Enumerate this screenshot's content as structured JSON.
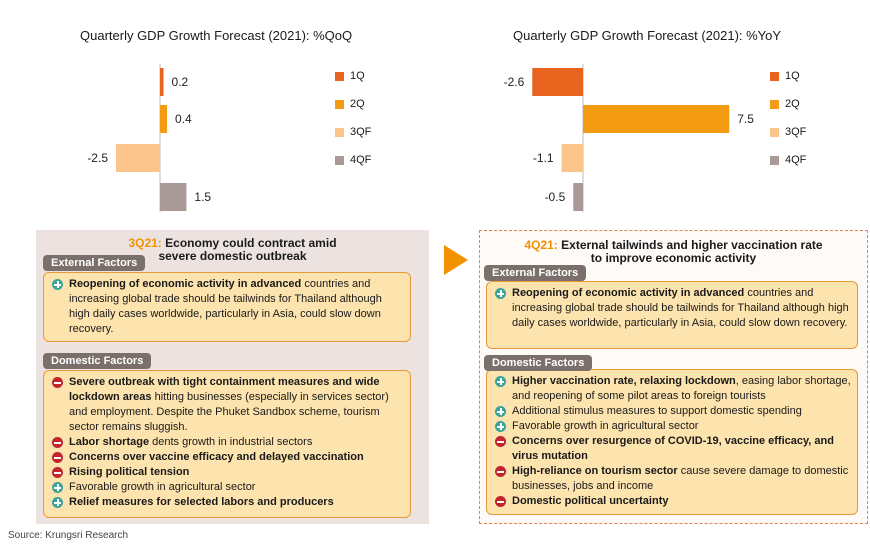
{
  "chart_data": [
    {
      "type": "bar",
      "orientation": "horizontal",
      "title": "Quarterly GDP Growth Forecast (2021): %QoQ",
      "categories": [
        "1Q",
        "2Q",
        "3QF",
        "4QF"
      ],
      "values": [
        0.2,
        0.4,
        -2.5,
        1.5
      ],
      "value_labels": [
        "0.2",
        "0.4",
        "-2.5",
        "1.5"
      ],
      "colors": [
        "#e8641e",
        "#f39c12",
        "#fac58a",
        "#a99a97"
      ],
      "legend_position": "right",
      "grid": false
    },
    {
      "type": "bar",
      "orientation": "horizontal",
      "title": "Quarterly GDP Growth Forecast (2021): %YoY",
      "categories": [
        "1Q",
        "2Q",
        "3QF",
        "4QF"
      ],
      "values": [
        -2.6,
        7.5,
        -1.1,
        -0.5
      ],
      "value_labels": [
        "-2.6",
        "7.5",
        "-1.1",
        "-0.5"
      ],
      "colors": [
        "#e8641e",
        "#f39c12",
        "#fac58a",
        "#a99a97"
      ],
      "legend_position": "right",
      "grid": false
    }
  ],
  "left_panel": {
    "quarter": "3Q21:",
    "title_line1": "Economy could contract amid",
    "title_line2": "severe domestic outbreak",
    "external_label": "External Factors",
    "external_items": [
      {
        "type": "plus",
        "bold": "Reopening of economic activity in advanced",
        "text": " countries and increasing global trade should be tailwinds for Thailand although high daily cases worldwide, particularly in Asia, could slow down recovery."
      }
    ],
    "domestic_label": "Domestic Factors",
    "domestic_items": [
      {
        "type": "minus",
        "bold": "Severe outbreak with tight containment measures and wide lockdown areas",
        "text": " hitting businesses (especially in services sector) and employment. Despite the Phuket Sandbox scheme, tourism sector remains sluggish."
      },
      {
        "type": "minus",
        "bold": "Labor shortage",
        "text": " dents growth in industrial sectors"
      },
      {
        "type": "minus",
        "bold": "Concerns over vaccine efficacy and delayed vaccination",
        "text": ""
      },
      {
        "type": "minus",
        "bold": "Rising political tension",
        "text": ""
      },
      {
        "type": "plus",
        "bold": "",
        "text": "Favorable growth in agricultural sector"
      },
      {
        "type": "plus",
        "bold": "Relief measures for selected labors and producers",
        "text": ""
      }
    ]
  },
  "right_panel": {
    "quarter": "4Q21:",
    "title_line1": "External tailwinds and higher vaccination rate",
    "title_line2": "to improve economic activity",
    "external_label": "External Factors",
    "external_items": [
      {
        "type": "plus",
        "bold": "Reopening of economic activity in advanced",
        "text": " countries and increasing global trade should be tailwinds for Thailand although high daily cases worldwide, particularly in Asia, could slow down recovery."
      }
    ],
    "domestic_label": "Domestic Factors",
    "domestic_items": [
      {
        "type": "plus",
        "bold": "Higher vaccination rate, relaxing lockdown",
        "text": ", easing labor shortage, and reopening of some pilot areas to foreign tourists"
      },
      {
        "type": "plus",
        "bold": "",
        "text": "Additional stimulus measures to support domestic spending"
      },
      {
        "type": "plus",
        "bold": "",
        "text": "Favorable growth in agricultural sector"
      },
      {
        "type": "minus",
        "bold": "Concerns over resurgence of COVID-19, vaccine efficacy, and virus mutation",
        "text": ""
      },
      {
        "type": "minus",
        "bold": "High-reliance on tourism sector",
        "text": " cause severe damage to domestic businesses, jobs and income"
      },
      {
        "type": "minus",
        "bold": "Domestic political uncertainty",
        "text": ""
      }
    ]
  },
  "source": "Source: Krungsri Research"
}
